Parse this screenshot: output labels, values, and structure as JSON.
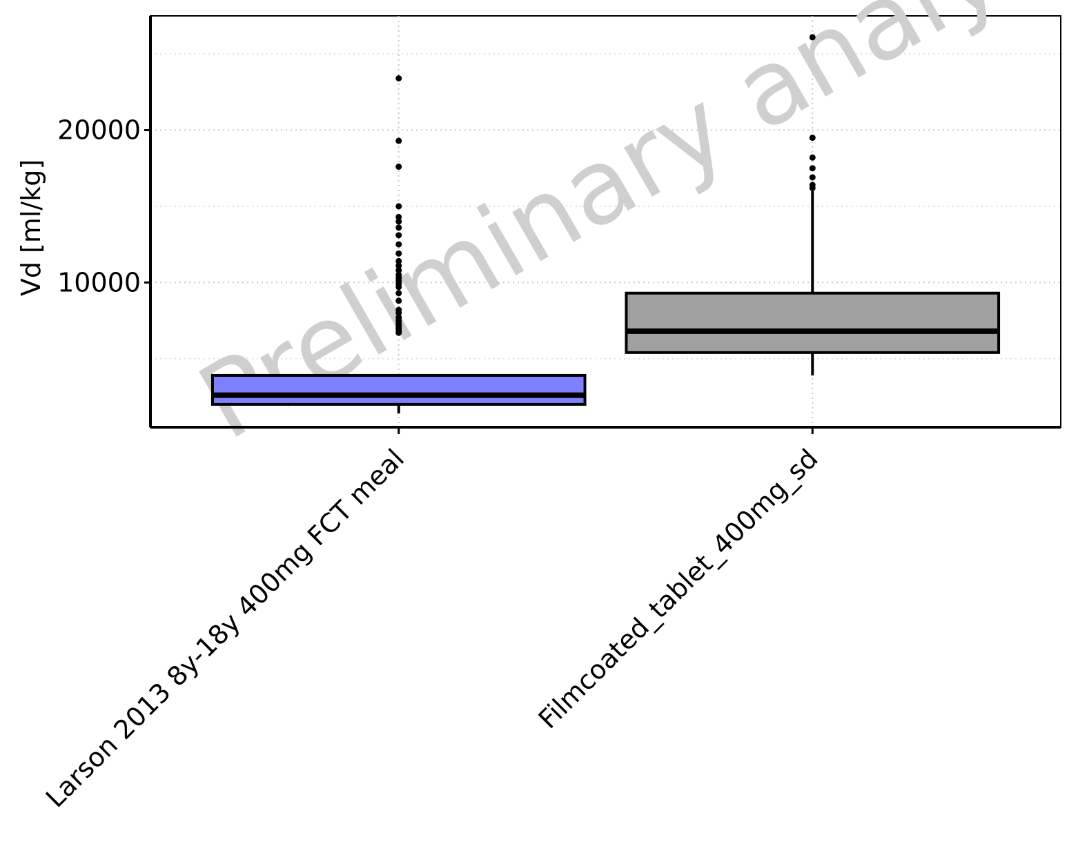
{
  "chart_data": {
    "type": "boxplot",
    "ylabel": "Vd [ml/kg]",
    "ylim": [
      500,
      27500
    ],
    "yticks": [
      10000,
      20000
    ],
    "grid": true,
    "watermark": "Preliminary analysis",
    "categories": [
      "Larson 2013 8y-18y 400mg FCT meal",
      "Filmcoated_tablet_400mg_sd"
    ],
    "boxes": [
      {
        "category": "Larson 2013 8y-18y 400mg FCT meal",
        "color": "#8080ff",
        "whisker_low": 1400,
        "q1": 2000,
        "median": 2600,
        "q3": 3900,
        "whisker_high": 3900,
        "outliers": [
          6700,
          6850,
          7000,
          7150,
          7300,
          7500,
          7700,
          8000,
          8200,
          8800,
          9300,
          9700,
          9900,
          10100,
          10300,
          10500,
          10800,
          11100,
          11400,
          11900,
          12500,
          13100,
          13600,
          14000,
          14300,
          15000,
          17600,
          19300,
          23400
        ]
      },
      {
        "category": "Filmcoated_tablet_400mg_sd",
        "color": "#a0a0a0",
        "whisker_low": 3900,
        "q1": 5400,
        "median": 6800,
        "q3": 9300,
        "whisker_high": 16000,
        "outliers": [
          16200,
          16400,
          16900,
          17500,
          18200,
          19500,
          26100
        ]
      }
    ]
  }
}
